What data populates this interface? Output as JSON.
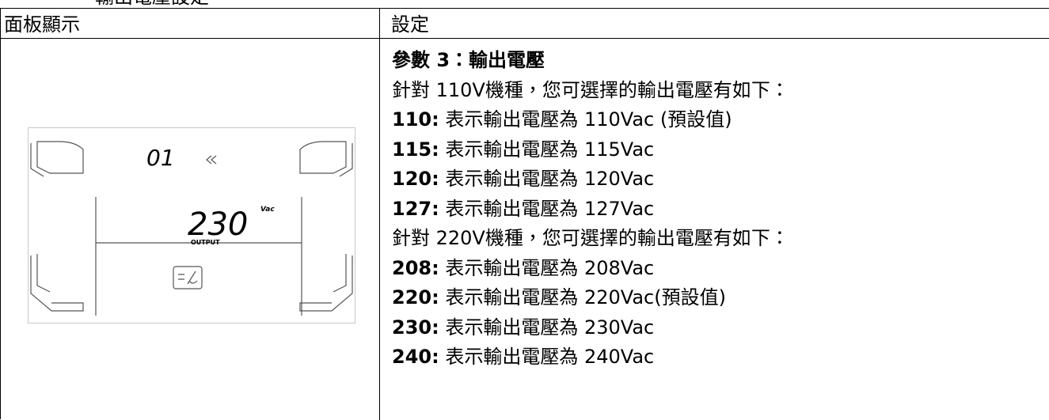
{
  "caption": "輸出電壓設定",
  "table": {
    "headers": [
      "面板顯示",
      "設定"
    ],
    "panel": {
      "code": "01",
      "value": "230",
      "unit": "Vac",
      "label": "OUTPUT"
    },
    "settings": [
      {
        "text": "參數 3：輸出電壓",
        "bold": true
      },
      {
        "text": "針對 110V機種，您可選擇的輸出電壓有如下："
      },
      {
        "key": "110:",
        "text": "表示輸出電壓為 110Vac (預設值)"
      },
      {
        "key": "115:",
        "text": "表示輸出電壓為 115Vac"
      },
      {
        "key": "120:",
        "text": "表示輸出電壓為 120Vac"
      },
      {
        "key": "127:",
        "text": "表示輸出電壓為 127Vac"
      },
      {
        "text": "針對 220V機種，您可選擇的輸出電壓有如下："
      },
      {
        "key": "208:",
        "text": "表示輸出電壓為 208Vac"
      },
      {
        "key": "220:",
        "text": "表示輸出電壓為 220Vac(預設值)"
      },
      {
        "key": "230:",
        "text": "表示輸出電壓為 230Vac"
      },
      {
        "key": "240:",
        "text": "表示輸出電壓為 240Vac"
      }
    ]
  }
}
